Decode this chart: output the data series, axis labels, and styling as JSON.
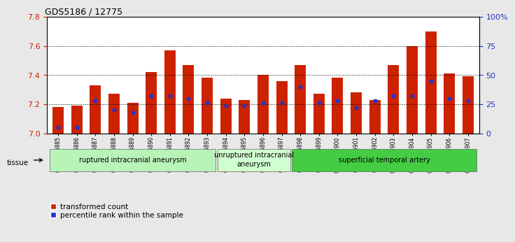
{
  "title": "GDS5186 / 12775",
  "samples": [
    "GSM1306885",
    "GSM1306886",
    "GSM1306887",
    "GSM1306888",
    "GSM1306889",
    "GSM1306890",
    "GSM1306891",
    "GSM1306892",
    "GSM1306893",
    "GSM1306894",
    "GSM1306895",
    "GSM1306896",
    "GSM1306897",
    "GSM1306898",
    "GSM1306899",
    "GSM1306900",
    "GSM1306901",
    "GSM1306902",
    "GSM1306903",
    "GSM1306904",
    "GSM1306905",
    "GSM1306906",
    "GSM1306907"
  ],
  "transformed_count": [
    7.18,
    7.19,
    7.33,
    7.27,
    7.21,
    7.42,
    7.57,
    7.47,
    7.38,
    7.24,
    7.23,
    7.4,
    7.36,
    7.47,
    7.27,
    7.38,
    7.28,
    7.23,
    7.47,
    7.6,
    7.7,
    7.41,
    7.39
  ],
  "percentile_rank": [
    5,
    5,
    28,
    20,
    18,
    32,
    32,
    30,
    26,
    24,
    24,
    26,
    26,
    40,
    26,
    28,
    22,
    28,
    32,
    32,
    45,
    30,
    28
  ],
  "groups": [
    {
      "label": "ruptured intracranial aneurysm",
      "start": 0,
      "end": 9,
      "color": "#bbffbb"
    },
    {
      "label": "unruptured intracranial\naneurysm",
      "start": 9,
      "end": 13,
      "color": "#ccffcc"
    },
    {
      "label": "superficial temporal artery",
      "start": 13,
      "end": 23,
      "color": "#44cc44"
    }
  ],
  "ylim": [
    7.0,
    7.8
  ],
  "y2lim": [
    0,
    100
  ],
  "bar_color": "#cc2200",
  "dot_color": "#2233cc",
  "fig_bg": "#e8e8e8",
  "plot_bg": "#ffffff",
  "left_label_color": "#cc2200",
  "right_label_color": "#2233cc",
  "tissue_label": "tissue",
  "legend_items": [
    "transformed count",
    "percentile rank within the sample"
  ]
}
